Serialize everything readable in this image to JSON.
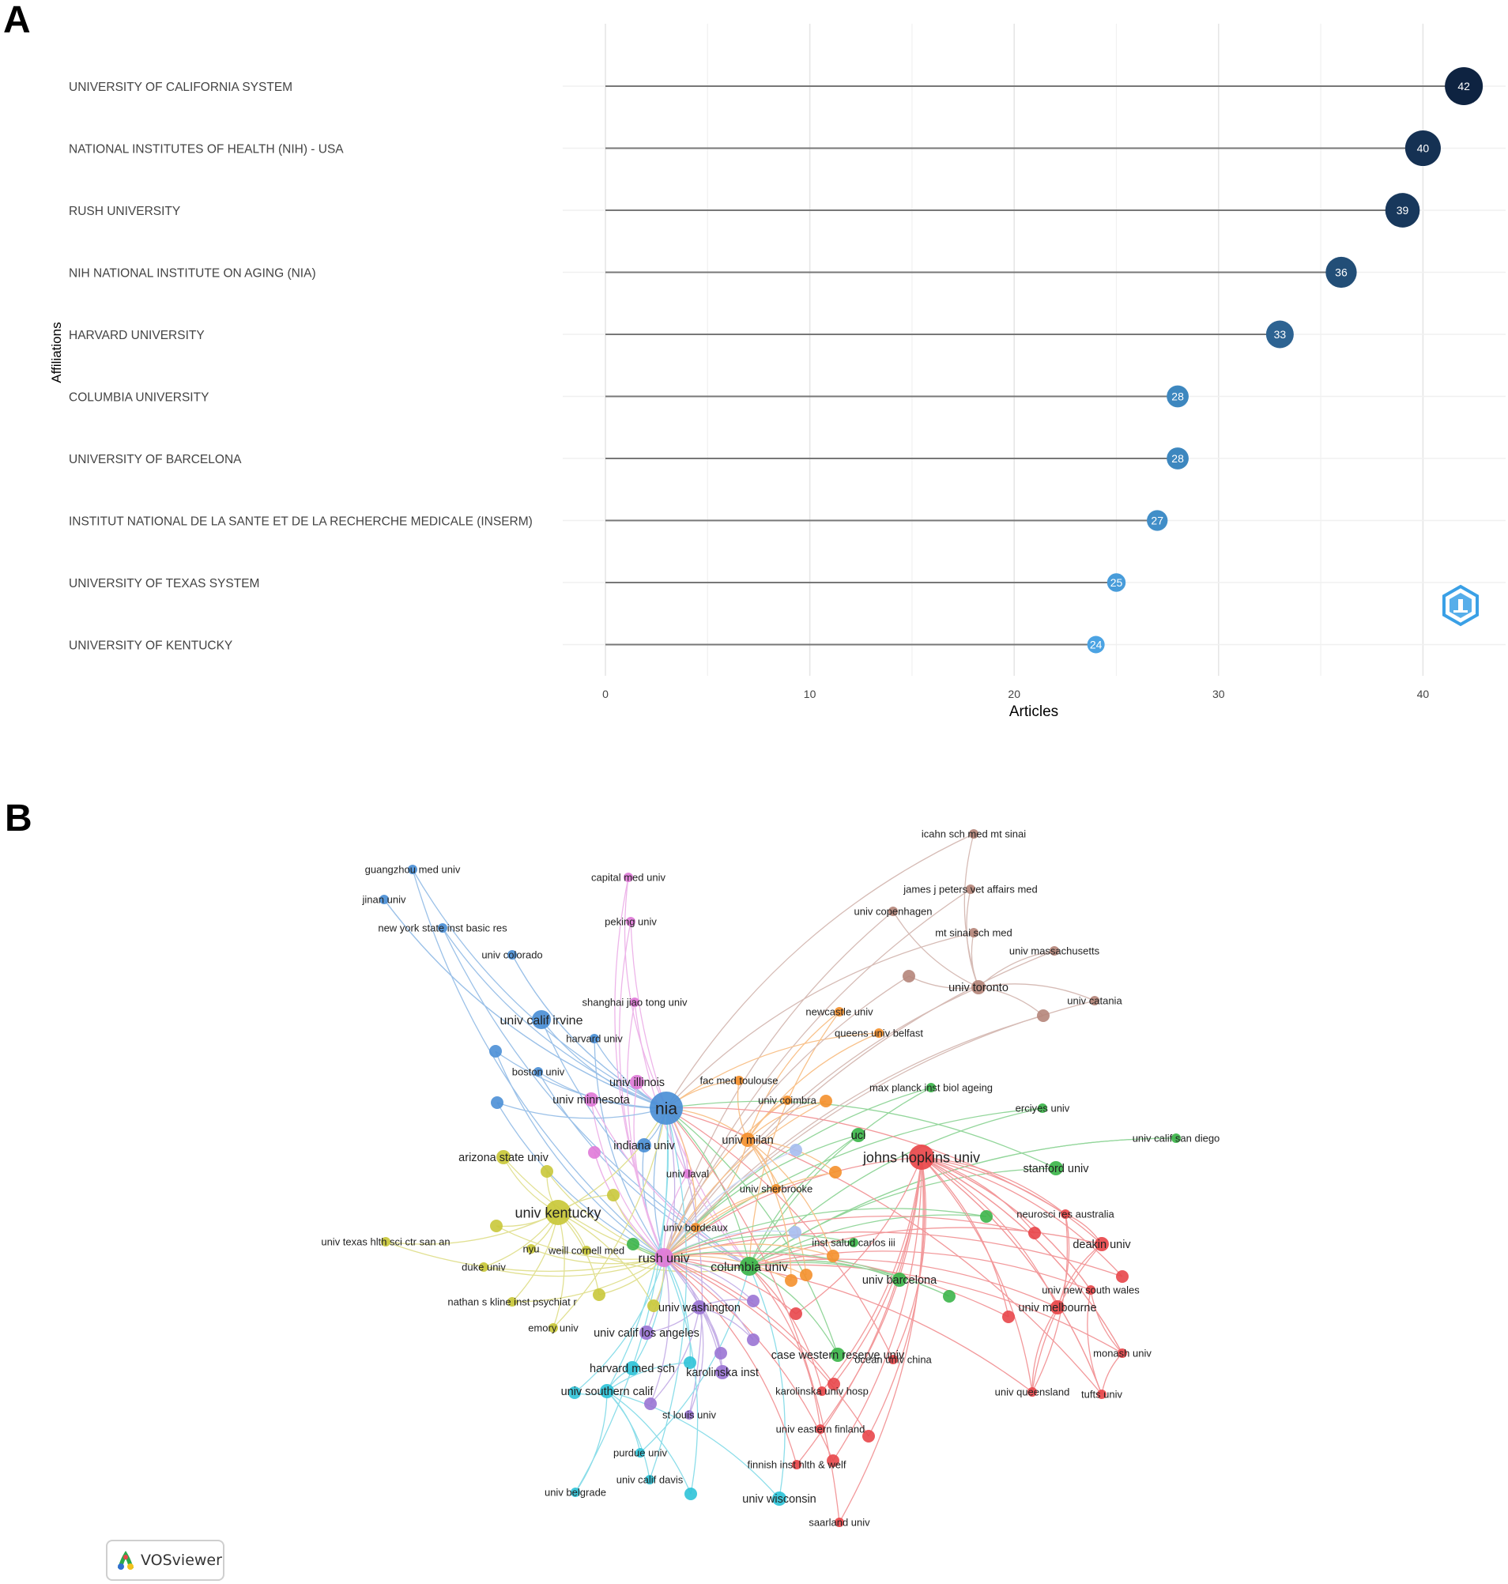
{
  "panel_labels": {
    "a": "A",
    "b": "B"
  },
  "chart_data": [
    {
      "type": "lollipop",
      "title": "",
      "xlabel": "Articles",
      "ylabel": "Affiliations",
      "xlim": [
        0,
        44
      ],
      "xticks": [
        0,
        10,
        20,
        30,
        40
      ],
      "grid": true,
      "categories": [
        "UNIVERSITY OF CALIFORNIA SYSTEM",
        "NATIONAL INSTITUTES OF HEALTH (NIH) - USA",
        "RUSH UNIVERSITY",
        "NIH NATIONAL INSTITUTE ON AGING (NIA)",
        "HARVARD UNIVERSITY",
        "COLUMBIA UNIVERSITY",
        "UNIVERSITY OF BARCELONA",
        "INSTITUT NATIONAL DE LA SANTE ET DE LA RECHERCHE MEDICALE (INSERM)",
        "UNIVERSITY OF TEXAS SYSTEM",
        "UNIVERSITY OF KENTUCKY"
      ],
      "values": [
        42,
        40,
        39,
        36,
        33,
        28,
        28,
        27,
        25,
        24
      ],
      "color_scale": [
        "#4ba3e3",
        "#0e2341"
      ]
    },
    {
      "type": "network",
      "source": "VOSviewer",
      "edge_color": "#b0b0b0",
      "cluster_colors": {
        "red": "#e8464a",
        "green": "#3cb54a",
        "blue": "#4b8fd6",
        "yellow": "#c9c83a",
        "purple": "#9a74d4",
        "cyan": "#2fc3d8",
        "orange": "#f4902c",
        "brown": "#b5857a",
        "pink": "#e07ad8",
        "lightblue": "#a6bdf0"
      },
      "nodes": [
        {
          "label": "icahn sch med mt sinai",
          "c": "brown",
          "w": 1
        },
        {
          "label": "james j peters vet affairs med",
          "c": "brown",
          "w": 1
        },
        {
          "label": "univ copenhagen",
          "c": "brown",
          "w": 1
        },
        {
          "label": "mt sinai sch med",
          "c": "brown",
          "w": 1
        },
        {
          "label": "univ massachusetts",
          "c": "brown",
          "w": 1
        },
        {
          "label": "univ toronto",
          "c": "brown",
          "w": 2
        },
        {
          "label": "univ catania",
          "c": "brown",
          "w": 1
        },
        {
          "label": "guangzhou med univ",
          "c": "blue",
          "w": 1
        },
        {
          "label": "jinan univ",
          "c": "blue",
          "w": 1
        },
        {
          "label": "new york state inst basic res",
          "c": "blue",
          "w": 1
        },
        {
          "label": "univ colorado",
          "c": "blue",
          "w": 1
        },
        {
          "label": "univ calif irvine",
          "c": "blue",
          "w": 3
        },
        {
          "label": "harvard univ",
          "c": "blue",
          "w": 1
        },
        {
          "label": "boston univ",
          "c": "blue",
          "w": 1
        },
        {
          "label": "nia",
          "c": "blue",
          "w": 5
        },
        {
          "label": "indiana univ",
          "c": "blue",
          "w": 2
        },
        {
          "label": "capital med univ",
          "c": "pink",
          "w": 1
        },
        {
          "label": "peking univ",
          "c": "pink",
          "w": 1
        },
        {
          "label": "shanghai jiao tong univ",
          "c": "pink",
          "w": 1
        },
        {
          "label": "univ illinois",
          "c": "pink",
          "w": 2
        },
        {
          "label": "univ minnesota",
          "c": "pink",
          "w": 2
        },
        {
          "label": "univ laval",
          "c": "pink",
          "w": 1
        },
        {
          "label": "rush univ",
          "c": "pink",
          "w": 3
        },
        {
          "label": "fac med toulouse",
          "c": "orange",
          "w": 1
        },
        {
          "label": "univ coimbra",
          "c": "orange",
          "w": 1
        },
        {
          "label": "newcastle univ",
          "c": "orange",
          "w": 1
        },
        {
          "label": "queens univ belfast",
          "c": "orange",
          "w": 1
        },
        {
          "label": "univ milan",
          "c": "orange",
          "w": 2
        },
        {
          "label": "univ sherbrooke",
          "c": "orange",
          "w": 1
        },
        {
          "label": "univ bordeaux",
          "c": "orange",
          "w": 1
        },
        {
          "label": "max planck inst biol ageing",
          "c": "green",
          "w": 1
        },
        {
          "label": "erciyes univ",
          "c": "green",
          "w": 1
        },
        {
          "label": "ucl",
          "c": "green",
          "w": 2
        },
        {
          "label": "univ calif san diego",
          "c": "green",
          "w": 1
        },
        {
          "label": "stanford univ",
          "c": "green",
          "w": 2
        },
        {
          "label": "inst salud carlos iii",
          "c": "green",
          "w": 1
        },
        {
          "label": "columbia univ",
          "c": "green",
          "w": 3
        },
        {
          "label": "univ barcelona",
          "c": "green",
          "w": 2
        },
        {
          "label": "case western reserve univ",
          "c": "green",
          "w": 2
        },
        {
          "label": "johns hopkins univ",
          "c": "red",
          "w": 4
        },
        {
          "label": "neurosci res australia",
          "c": "red",
          "w": 1
        },
        {
          "label": "deakin univ",
          "c": "red",
          "w": 2
        },
        {
          "label": "univ new south wales",
          "c": "red",
          "w": 1
        },
        {
          "label": "univ melbourne",
          "c": "red",
          "w": 2
        },
        {
          "label": "monash univ",
          "c": "red",
          "w": 1
        },
        {
          "label": "ocean univ china",
          "c": "red",
          "w": 1
        },
        {
          "label": "univ queensland",
          "c": "red",
          "w": 1
        },
        {
          "label": "tufts univ",
          "c": "red",
          "w": 1
        },
        {
          "label": "arizona state univ",
          "c": "yellow",
          "w": 2
        },
        {
          "label": "univ kentucky",
          "c": "yellow",
          "w": 4
        },
        {
          "label": "univ texas hlth sci ctr san an",
          "c": "yellow",
          "w": 1
        },
        {
          "label": "nyu",
          "c": "yellow",
          "w": 1
        },
        {
          "label": "weill cornell med",
          "c": "yellow",
          "w": 1
        },
        {
          "label": "duke univ",
          "c": "yellow",
          "w": 1
        },
        {
          "label": "nathan s kline inst psychiat r",
          "c": "yellow",
          "w": 1
        },
        {
          "label": "emory univ",
          "c": "yellow",
          "w": 1
        },
        {
          "label": "univ washington",
          "c": "purple",
          "w": 2
        },
        {
          "label": "univ calif los angeles",
          "c": "purple",
          "w": 2
        },
        {
          "label": "karolinska inst",
          "c": "purple",
          "w": 2
        },
        {
          "label": "st louis univ",
          "c": "purple",
          "w": 1
        },
        {
          "label": "harvard med sch",
          "c": "cyan",
          "w": 2
        },
        {
          "label": "univ southern calif",
          "c": "cyan",
          "w": 2
        },
        {
          "label": "purdue univ",
          "c": "cyan",
          "w": 1
        },
        {
          "label": "univ calif davis",
          "c": "cyan",
          "w": 1
        },
        {
          "label": "univ belgrade",
          "c": "cyan",
          "w": 1
        },
        {
          "label": "univ wisconsin",
          "c": "cyan",
          "w": 2
        },
        {
          "label": "karolinska univ hosp",
          "c": "red",
          "w": 1
        },
        {
          "label": "univ eastern finland",
          "c": "red",
          "w": 1
        },
        {
          "label": "finnish inst hlth & welf",
          "c": "red",
          "w": 1
        },
        {
          "label": "saarland univ",
          "c": "red",
          "w": 1
        }
      ]
    }
  ],
  "logo": {
    "text": "VOSviewer"
  }
}
